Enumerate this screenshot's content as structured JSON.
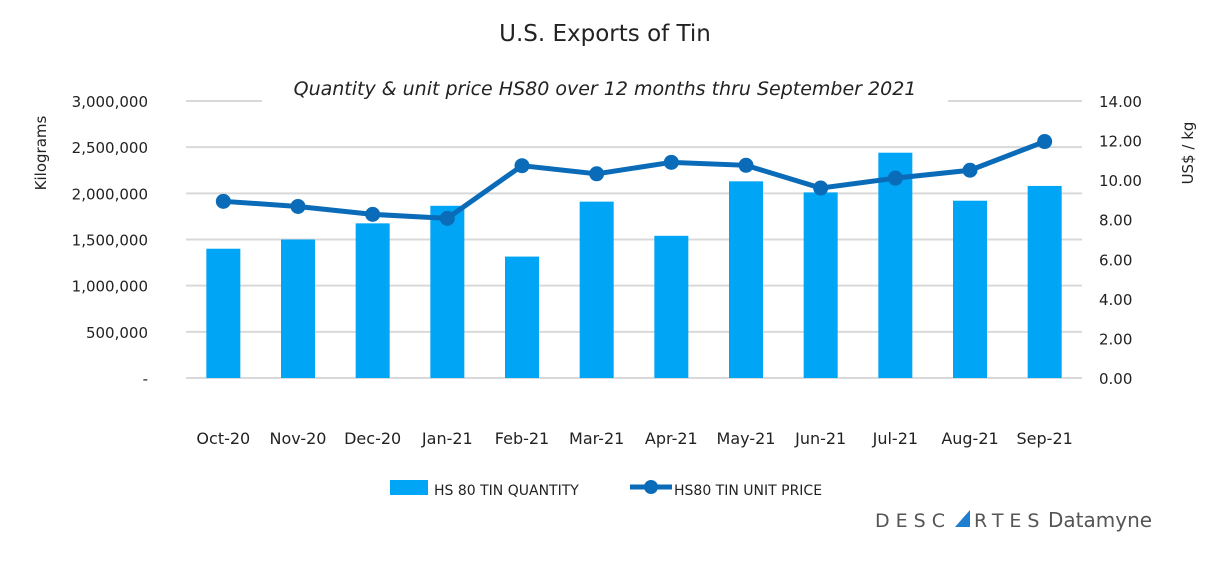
{
  "chart_data": {
    "type": "bar+line",
    "title": "U.S. Exports of Tin",
    "subtitle": "Quantity & unit price HS80 over 12 months thru September 2021",
    "ylabel_left": "Kilograms",
    "ylabel_right": "US$ / kg",
    "ylim_left": [
      0,
      3000000
    ],
    "ylim_right": [
      0,
      14
    ],
    "yticks_left": [
      "-",
      "500,000",
      "1,000,000",
      "1,500,000",
      "2,000,000",
      "2,500,000",
      "3,000,000"
    ],
    "yticks_right": [
      "0.00",
      "2.00",
      "4.00",
      "6.00",
      "8.00",
      "10.00",
      "12.00",
      "14.00"
    ],
    "categories": [
      "Oct-20",
      "Nov-20",
      "Dec-20",
      "Jan-21",
      "Feb-21",
      "Mar-21",
      "Apr-21",
      "May-21",
      "Jun-21",
      "Jul-21",
      "Aug-21",
      "Sep-21"
    ],
    "grid": true,
    "legend_position": "bottom",
    "series": [
      {
        "name": "HS 80 TIN QUANTITY",
        "type": "bar",
        "axis": "left",
        "color": "#00a5f5",
        "values": [
          1400000,
          1500000,
          1675000,
          1865000,
          1315000,
          1910000,
          1540000,
          2130000,
          2010000,
          2440000,
          1920000,
          2080000
        ]
      },
      {
        "name": "HS80 TIN UNIT PRICE",
        "type": "line",
        "axis": "right",
        "color": "#0a6bb8",
        "values": [
          8.93,
          8.67,
          8.27,
          8.07,
          10.73,
          10.32,
          10.9,
          10.75,
          9.6,
          10.1,
          10.5,
          11.95
        ]
      }
    ]
  },
  "logo": {
    "brand": "DESCARTES",
    "product": "Datamyne"
  }
}
